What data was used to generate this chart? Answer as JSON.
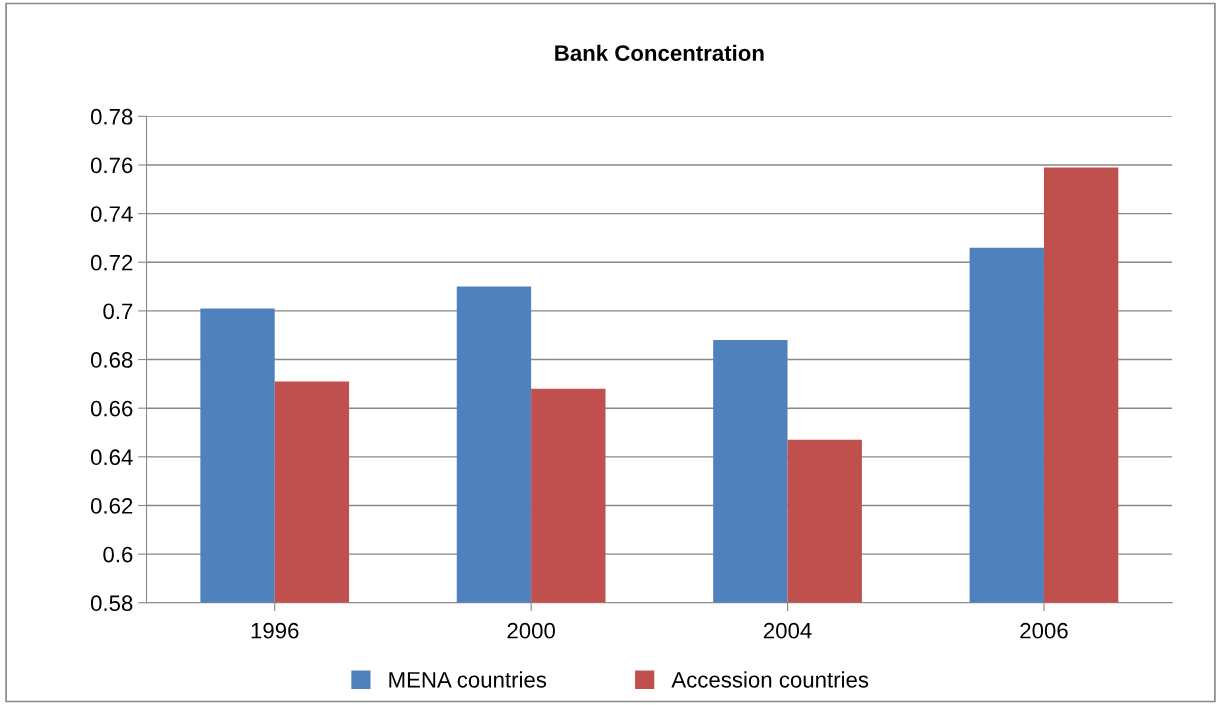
{
  "chart_data": {
    "type": "bar",
    "title": "Bank Concentration",
    "categories": [
      "1996",
      "2000",
      "2004",
      "2006"
    ],
    "series": [
      {
        "name": "MENA countries",
        "color": "#4f81bd",
        "values": [
          0.701,
          0.71,
          0.688,
          0.726
        ]
      },
      {
        "name": "Accession countries",
        "color": "#c0504d",
        "values": [
          0.671,
          0.668,
          0.647,
          0.759
        ]
      }
    ],
    "ylim": [
      0.58,
      0.78
    ],
    "yticks": [
      0.58,
      0.6,
      0.62,
      0.64,
      0.66,
      0.68,
      0.7,
      0.72,
      0.74,
      0.76,
      0.78
    ],
    "grid": "y",
    "legend": "bottom"
  }
}
